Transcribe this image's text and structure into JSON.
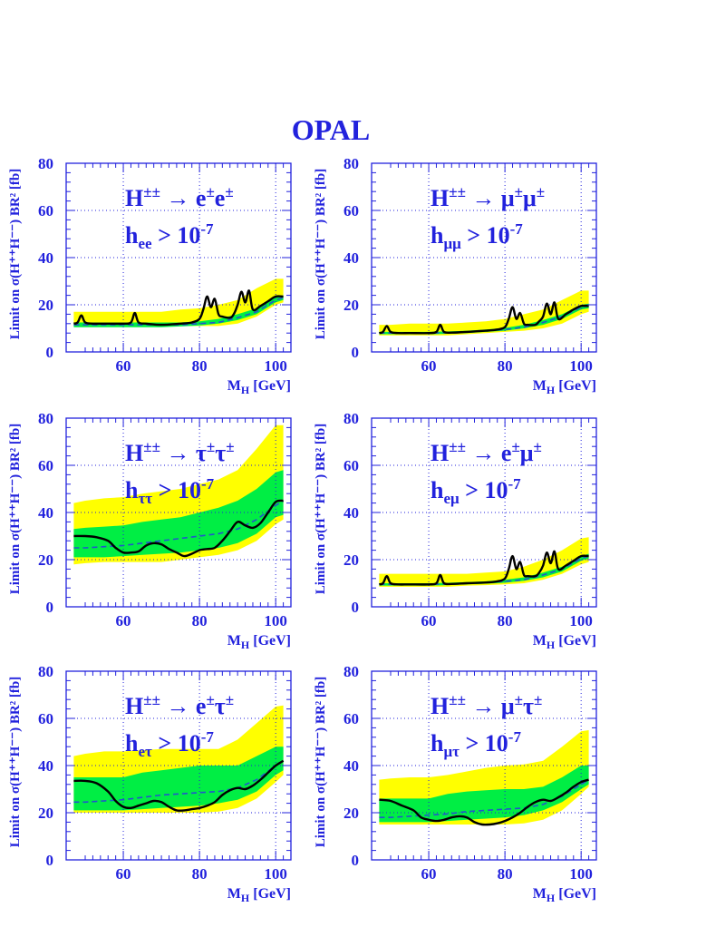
{
  "figure": {
    "title": "OPAL",
    "colors": {
      "axis": "#2222dd",
      "band_2sigma": "#ffff00",
      "band_1sigma": "#00ee44",
      "observed": "#000000",
      "expected": "#2255cc",
      "grid": "#2222dd"
    }
  },
  "chart_data": [
    {
      "type": "area",
      "panel": "ee",
      "decay_label": {
        "parent": "H",
        "parent_sup": "±±",
        "arrow": "→",
        "d1": "e",
        "d1_sup": "±",
        "d2": "e",
        "d2_sup": "±"
      },
      "coupling_label": {
        "h": "h",
        "sub": "ee",
        "rel": " > ",
        "base": "10",
        "exp": "-7"
      },
      "xlabel": {
        "main": "M",
        "sub": "H",
        "unit": " [GeV]"
      },
      "ylabel": "Limit on σ(H⁺⁺H⁻⁻) BR² [fb]",
      "xlim": [
        45,
        104
      ],
      "ylim": [
        0,
        80
      ],
      "xticks": [
        60,
        80,
        100
      ],
      "yticks": [
        0,
        20,
        40,
        60,
        80
      ],
      "grid": true,
      "x": [
        47,
        50,
        55,
        60,
        65,
        70,
        75,
        80,
        85,
        90,
        95,
        100,
        102
      ],
      "expected": [
        11.5,
        11.5,
        11.5,
        11.5,
        11.5,
        11.5,
        11.5,
        12,
        12.5,
        14.5,
        17,
        22,
        23
      ],
      "band1_lo": [
        10.5,
        10.5,
        10.5,
        10.5,
        10.5,
        10.5,
        10.8,
        11.2,
        12,
        13.5,
        16,
        21,
        22
      ],
      "band1_hi": [
        12.5,
        12.5,
        12.5,
        12.5,
        12.5,
        12.5,
        12.5,
        13,
        14,
        16,
        18.5,
        23.5,
        24
      ],
      "band2_lo": [
        11,
        11,
        11,
        11,
        11,
        11,
        11,
        11,
        11,
        12,
        15,
        20,
        21
      ],
      "band2_hi": [
        17,
        17,
        17,
        17,
        17,
        17,
        18,
        18.5,
        20,
        22,
        27,
        31,
        31
      ],
      "observed_x": [
        47,
        48,
        49,
        50,
        52,
        55,
        60,
        62,
        63,
        64,
        66,
        70,
        75,
        78,
        80,
        81,
        82,
        83,
        84,
        85,
        86,
        88,
        89,
        90,
        91,
        92,
        93,
        94,
        96,
        98,
        100,
        102
      ],
      "observed": [
        12,
        12.5,
        15.5,
        12.5,
        12,
        12,
        12,
        12.5,
        16.5,
        12.5,
        12,
        11.5,
        12,
        12.5,
        14,
        18,
        23.5,
        19,
        22.5,
        16,
        15,
        14.5,
        16,
        20,
        25.5,
        21,
        26,
        18,
        19.5,
        21.5,
        23.5,
        23.5
      ]
    },
    {
      "type": "area",
      "panel": "mumu",
      "decay_label": {
        "parent": "H",
        "parent_sup": "±±",
        "arrow": "→",
        "d1": "μ",
        "d1_sup": "±",
        "d2": "μ",
        "d2_sup": "±"
      },
      "coupling_label": {
        "h": "h",
        "sub": "μμ",
        "rel": " > ",
        "base": "10",
        "exp": "-7"
      },
      "xlabel": {
        "main": "M",
        "sub": "H",
        "unit": " [GeV]"
      },
      "ylabel": "Limit on σ(H⁺⁺H⁻⁻) BR² [fb]",
      "xlim": [
        45,
        104
      ],
      "ylim": [
        0,
        80
      ],
      "xticks": [
        60,
        80,
        100
      ],
      "yticks": [
        0,
        20,
        40,
        60,
        80
      ],
      "grid": true,
      "x": [
        47,
        50,
        55,
        60,
        65,
        70,
        75,
        80,
        85,
        90,
        95,
        100,
        102
      ],
      "expected": [
        8,
        8,
        8,
        8,
        8.2,
        8.5,
        9,
        9.5,
        10.5,
        12.5,
        15,
        19,
        19.5
      ],
      "band1_lo": [
        7.5,
        7.5,
        7.5,
        7.5,
        7.7,
        8,
        8.5,
        9,
        10,
        11.5,
        14,
        18,
        18.5
      ],
      "band1_hi": [
        8.5,
        8.5,
        8.5,
        8.5,
        8.7,
        9,
        9.5,
        10.2,
        11.5,
        13.5,
        16,
        20,
        20.5
      ],
      "band2_lo": [
        7,
        7,
        7,
        7,
        7,
        7.5,
        8,
        8.5,
        9,
        10,
        12,
        16,
        17
      ],
      "band2_hi": [
        11.5,
        11.5,
        12,
        12,
        12,
        12.5,
        13,
        14,
        16,
        18,
        22,
        26,
        26
      ],
      "observed_x": [
        47,
        48,
        49,
        50,
        52,
        55,
        60,
        62,
        63,
        64,
        66,
        70,
        75,
        78,
        80,
        81,
        82,
        83,
        84,
        85,
        86,
        88,
        89,
        90,
        91,
        92,
        93,
        94,
        96,
        98,
        100,
        102
      ],
      "observed": [
        8,
        8.5,
        11,
        8.5,
        8,
        8,
        8,
        8.5,
        11.5,
        8.5,
        8.2,
        8.5,
        9,
        9.5,
        10.5,
        14,
        19,
        14,
        16.5,
        12,
        11.5,
        11.5,
        13,
        15,
        20.5,
        16,
        21,
        14,
        16,
        18,
        19.5,
        19.5
      ]
    },
    {
      "type": "area",
      "panel": "tautau",
      "decay_label": {
        "parent": "H",
        "parent_sup": "±±",
        "arrow": "→",
        "d1": "τ",
        "d1_sup": "±",
        "d2": "τ",
        "d2_sup": "±"
      },
      "coupling_label": {
        "h": "h",
        "sub": "ττ",
        "rel": " > ",
        "base": "10",
        "exp": "-7"
      },
      "xlabel": {
        "main": "M",
        "sub": "H",
        "unit": " [GeV]"
      },
      "ylabel": "Limit on σ(H⁺⁺H⁻⁻) BR² [fb]",
      "xlim": [
        45,
        104
      ],
      "ylim": [
        0,
        80
      ],
      "xticks": [
        60,
        80,
        100
      ],
      "yticks": [
        0,
        20,
        40,
        60,
        80
      ],
      "grid": true,
      "x": [
        47,
        50,
        55,
        60,
        65,
        70,
        75,
        80,
        85,
        90,
        95,
        100,
        102
      ],
      "expected": [
        25,
        25,
        25.5,
        26,
        27,
        28,
        29,
        30,
        31,
        33,
        37,
        43,
        45
      ],
      "band1_lo": [
        21,
        21,
        21,
        21.5,
        22,
        22.5,
        23,
        24,
        25,
        27,
        31,
        38,
        39
      ],
      "band1_hi": [
        33,
        33.5,
        34,
        34.5,
        36,
        37,
        38,
        40,
        42,
        45,
        50,
        57,
        58
      ],
      "band2_lo": [
        18,
        18.5,
        19,
        19,
        19,
        19,
        20,
        21,
        22,
        24,
        28,
        35,
        37
      ],
      "band2_hi": [
        44,
        45,
        46,
        46.5,
        48,
        49,
        50,
        52,
        54,
        58,
        67,
        77,
        77
      ],
      "observed_x": [
        47,
        50,
        53,
        56,
        58,
        60,
        62,
        64,
        66,
        68,
        70,
        72,
        74,
        76,
        78,
        80,
        82,
        84,
        86,
        88,
        90,
        92,
        94,
        96,
        98,
        100,
        102
      ],
      "observed": [
        30,
        30,
        29.5,
        28,
        25,
        23,
        23,
        23.5,
        26,
        27,
        26.5,
        24.5,
        23,
        21.5,
        22.5,
        24,
        24.5,
        25,
        28,
        32,
        36,
        34.5,
        33.5,
        35.5,
        40,
        44.5,
        45
      ]
    },
    {
      "type": "area",
      "panel": "emu",
      "decay_label": {
        "parent": "H",
        "parent_sup": "±±",
        "arrow": "→",
        "d1": "e",
        "d1_sup": "±",
        "d2": "μ",
        "d2_sup": "±"
      },
      "coupling_label": {
        "h": "h",
        "sub": "eμ",
        "rel": " > ",
        "base": "10",
        "exp": "-7"
      },
      "xlabel": {
        "main": "M",
        "sub": "H",
        "unit": " [GeV]"
      },
      "ylabel": "Limit on σ(H⁺⁺H⁻⁻) BR² [fb]",
      "xlim": [
        45,
        104
      ],
      "ylim": [
        0,
        80
      ],
      "xticks": [
        60,
        80,
        100
      ],
      "yticks": [
        0,
        20,
        40,
        60,
        80
      ],
      "grid": true,
      "x": [
        47,
        50,
        55,
        60,
        65,
        70,
        75,
        80,
        85,
        90,
        95,
        100,
        102
      ],
      "expected": [
        9.5,
        9.5,
        9.5,
        9.5,
        9.7,
        10,
        10.3,
        10.8,
        11.5,
        13.5,
        16,
        20.5,
        21.5
      ],
      "band1_lo": [
        9,
        9,
        9,
        9,
        9.2,
        9.5,
        9.8,
        10.2,
        11,
        12.5,
        15,
        19.5,
        20.5
      ],
      "band1_hi": [
        10,
        10,
        10,
        10,
        10.2,
        10.5,
        10.8,
        11.5,
        12.5,
        14.5,
        17,
        21.5,
        22.5
      ],
      "band2_lo": [
        8.5,
        8.5,
        8.5,
        8.5,
        8.5,
        9,
        9.2,
        9.5,
        10,
        11.5,
        14,
        18,
        19
      ],
      "band2_hi": [
        14,
        14,
        14,
        14,
        14,
        14,
        14.5,
        15,
        17,
        20,
        24,
        29,
        29.5
      ],
      "observed_x": [
        47,
        48,
        49,
        50,
        52,
        55,
        60,
        62,
        63,
        64,
        66,
        70,
        75,
        78,
        80,
        81,
        82,
        83,
        84,
        85,
        86,
        88,
        89,
        90,
        91,
        92,
        93,
        94,
        96,
        98,
        100,
        102
      ],
      "observed": [
        9.5,
        10,
        13,
        10,
        9.5,
        9.5,
        9.5,
        10,
        13.5,
        10,
        9.7,
        10,
        10.3,
        10.8,
        12,
        16,
        21.5,
        16,
        19,
        13.5,
        13,
        13,
        14.5,
        17.5,
        23,
        18.5,
        23.5,
        16,
        17.5,
        19.5,
        21.5,
        21.5
      ]
    },
    {
      "type": "area",
      "panel": "etau",
      "decay_label": {
        "parent": "H",
        "parent_sup": "±±",
        "arrow": "→",
        "d1": "e",
        "d1_sup": "±",
        "d2": "τ",
        "d2_sup": "±"
      },
      "coupling_label": {
        "h": "h",
        "sub": "eτ",
        "rel": " > ",
        "base": "10",
        "exp": "-7"
      },
      "xlabel": {
        "main": "M",
        "sub": "H",
        "unit": " [GeV]"
      },
      "ylabel": "Limit on σ(H⁺⁺H⁻⁻) BR² [fb]",
      "xlim": [
        45,
        104
      ],
      "ylim": [
        0,
        80
      ],
      "xticks": [
        60,
        80,
        100
      ],
      "yticks": [
        0,
        20,
        40,
        60,
        80
      ],
      "grid": true,
      "x": [
        47,
        50,
        55,
        60,
        65,
        70,
        75,
        80,
        85,
        90,
        95,
        100,
        102
      ],
      "expected": [
        24.5,
        24.5,
        25,
        25.5,
        26.5,
        27.5,
        28,
        28.5,
        29,
        30.5,
        34,
        40,
        42
      ],
      "band1_lo": [
        21,
        21,
        21,
        21,
        21.5,
        22,
        22.5,
        23,
        24,
        25.5,
        29,
        36,
        38
      ],
      "band1_hi": [
        35,
        35,
        35,
        35,
        37,
        38,
        39,
        40,
        40,
        40,
        44,
        48,
        48
      ],
      "band2_lo": [
        20,
        20,
        20,
        20,
        20,
        20,
        20,
        20,
        20.5,
        22,
        26,
        33,
        36
      ],
      "band2_hi": [
        44,
        45,
        46,
        46,
        46.5,
        47,
        47,
        47,
        47,
        51,
        58,
        65,
        65.5
      ],
      "observed_x": [
        47,
        50,
        53,
        56,
        58,
        60,
        62,
        64,
        66,
        68,
        70,
        72,
        74,
        76,
        78,
        80,
        82,
        84,
        86,
        88,
        90,
        92,
        94,
        96,
        98,
        100,
        102
      ],
      "observed": [
        33.5,
        33.5,
        32.5,
        29,
        25,
        22.5,
        22,
        23,
        24,
        25,
        24.5,
        22.5,
        21,
        21,
        21.5,
        22,
        23,
        24.5,
        27.5,
        29.5,
        30.5,
        30,
        31.5,
        34,
        37,
        40,
        42
      ]
    },
    {
      "type": "area",
      "panel": "mutau",
      "decay_label": {
        "parent": "H",
        "parent_sup": "±±",
        "arrow": "→",
        "d1": "μ",
        "d1_sup": "±",
        "d2": "τ",
        "d2_sup": "±"
      },
      "coupling_label": {
        "h": "h",
        "sub": "μτ",
        "rel": " > ",
        "base": "10",
        "exp": "-7"
      },
      "xlabel": {
        "main": "M",
        "sub": "H",
        "unit": " [GeV]"
      },
      "ylabel": "Limit on σ(H⁺⁺H⁻⁻) BR² [fb]",
      "xlim": [
        45,
        104
      ],
      "ylim": [
        0,
        80
      ],
      "xticks": [
        60,
        80,
        100
      ],
      "yticks": [
        0,
        20,
        40,
        60,
        80
      ],
      "grid": true,
      "x": [
        47,
        50,
        55,
        60,
        65,
        70,
        75,
        80,
        85,
        90,
        95,
        100,
        102
      ],
      "expected": [
        18,
        18,
        18.5,
        19,
        19.5,
        20.5,
        21,
        21.5,
        22,
        23.5,
        27,
        32,
        34
      ],
      "band1_lo": [
        16,
        16,
        16,
        16,
        16.5,
        17,
        17.5,
        18,
        19,
        21,
        24.5,
        30,
        32
      ],
      "band1_hi": [
        26,
        26,
        26,
        26,
        28,
        29,
        29.5,
        30,
        30,
        31,
        35,
        40,
        40
      ],
      "band2_lo": [
        15,
        15,
        15,
        15,
        15,
        15,
        15,
        15,
        15.5,
        17,
        21,
        28,
        31
      ],
      "band2_hi": [
        34,
        34.5,
        35,
        35,
        36,
        37.5,
        39,
        40,
        40.5,
        42,
        48,
        54.5,
        55
      ],
      "observed_x": [
        47,
        50,
        53,
        56,
        58,
        60,
        62,
        64,
        66,
        68,
        70,
        72,
        74,
        76,
        78,
        80,
        82,
        84,
        86,
        88,
        90,
        92,
        94,
        96,
        98,
        100,
        102
      ],
      "observed": [
        25.5,
        25,
        23,
        21,
        18,
        17,
        16.5,
        17,
        18,
        18.5,
        18,
        16,
        15,
        15,
        15.5,
        16.5,
        18,
        20,
        22.5,
        24.5,
        25.5,
        25,
        26.5,
        28.5,
        31,
        33,
        34
      ]
    }
  ]
}
